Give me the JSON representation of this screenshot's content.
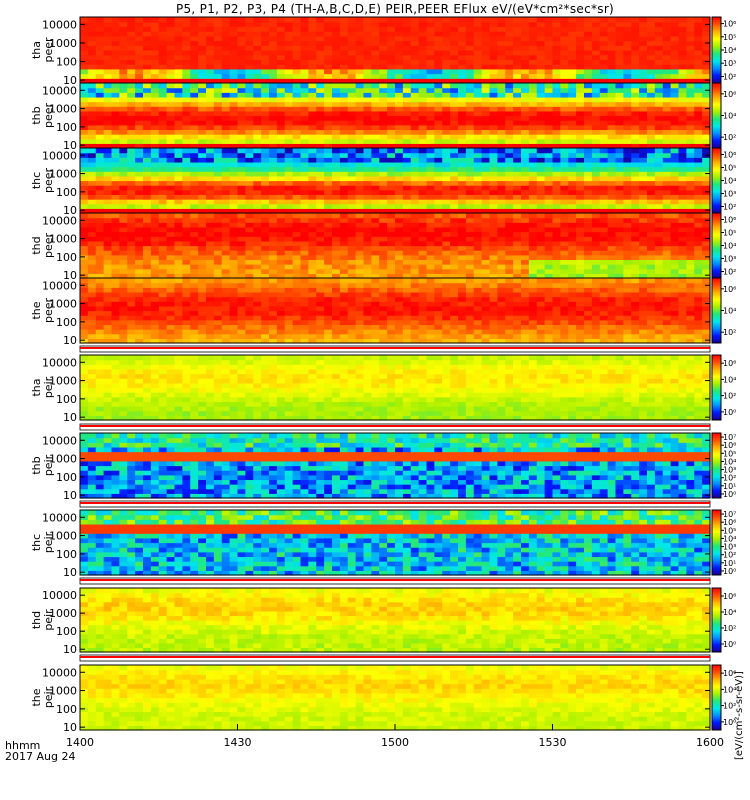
{
  "chart_data": {
    "type": "heatmap",
    "title": "P5, P1, P2, P3, P4 (TH-A,B,C,D,E) PEIR,PEER EFlux eV/(eV*cm²*sec*sr)",
    "xlabel": "hhmm",
    "date_label": "2017 Aug 24",
    "x_range": [
      "1400",
      "1600"
    ],
    "x_ticks": [
      "1400",
      "1430",
      "1500",
      "1530",
      "1600"
    ],
    "y_scale": "log",
    "y_range_eV": [
      7,
      25000
    ],
    "y_ticks": [
      "10",
      "100",
      "1000",
      "10000"
    ],
    "colorbar_label": "[eV/(cm²-s-sr-eV)]",
    "colorbar_scale": "log",
    "panels": [
      {
        "probe": "tha",
        "species": "peer",
        "label": [
          "tha",
          "peer"
        ],
        "cbar_range": [
          100,
          1000000
        ],
        "cbar_ticks": [
          "10²",
          "10³",
          "10⁴",
          "10⁵",
          "10⁶"
        ]
      },
      {
        "probe": "thb",
        "species": "peer",
        "label": [
          "thb",
          "peer"
        ],
        "cbar_range": [
          100,
          1000000
        ],
        "cbar_ticks": [
          "10²",
          "10⁴",
          "10⁶"
        ]
      },
      {
        "probe": "thc",
        "species": "peer",
        "label": [
          "thc",
          "peer"
        ],
        "cbar_range": [
          100,
          1000000
        ],
        "cbar_ticks": [
          "10²",
          "10³",
          "10⁴",
          "10⁵",
          "10⁶"
        ]
      },
      {
        "probe": "thd",
        "species": "peer",
        "label": [
          "thd",
          "peer"
        ],
        "cbar_range": [
          100,
          1000000
        ],
        "cbar_ticks": [
          "10²",
          "10³",
          "10⁴",
          "10⁵",
          "10⁶"
        ]
      },
      {
        "probe": "the",
        "species": "peer",
        "label": [
          "the",
          "peer"
        ],
        "cbar_range": [
          100,
          1000000
        ],
        "cbar_ticks": [
          "10²",
          "10⁴",
          "10⁶"
        ]
      },
      {
        "probe": "tha",
        "species": "peir",
        "label": [
          "tha",
          "peir"
        ],
        "cbar_range": [
          1,
          1000000
        ],
        "cbar_ticks": [
          "10⁰",
          "10²",
          "10⁴",
          "10⁶"
        ]
      },
      {
        "probe": "thb",
        "species": "peir",
        "label": [
          "thb",
          "peir"
        ],
        "cbar_range": [
          1,
          10000000
        ],
        "cbar_ticks": [
          "10⁰",
          "10¹",
          "10²",
          "10³",
          "10⁴",
          "10⁵",
          "10⁶",
          "10⁷"
        ]
      },
      {
        "probe": "thc",
        "species": "peir",
        "label": [
          "thc",
          "peir"
        ],
        "cbar_range": [
          1,
          10000000
        ],
        "cbar_ticks": [
          "10⁰",
          "10¹",
          "10²",
          "10³",
          "10⁴",
          "10⁵",
          "10⁶",
          "10⁷"
        ]
      },
      {
        "probe": "thd",
        "species": "peir",
        "label": [
          "thd",
          "peir"
        ],
        "cbar_range": [
          1,
          1000000
        ],
        "cbar_ticks": [
          "10⁰",
          "10²",
          "10⁴",
          "10⁶"
        ]
      },
      {
        "probe": "the",
        "species": "peir",
        "label": [
          "the",
          "peir"
        ],
        "cbar_range": [
          1,
          1000000
        ],
        "cbar_ticks": [
          "10⁰",
          "10²",
          "10⁴",
          "10⁶"
        ]
      }
    ],
    "colors": {
      "colormap": [
        "#1a0090",
        "#0018ff",
        "#0090ff",
        "#00e8e8",
        "#22e87a",
        "#a8f000",
        "#ffff00",
        "#ffb000",
        "#ff5000",
        "#ff0000"
      ],
      "fill_band": "#ff0000",
      "gap_band": "#ffffff"
    }
  }
}
